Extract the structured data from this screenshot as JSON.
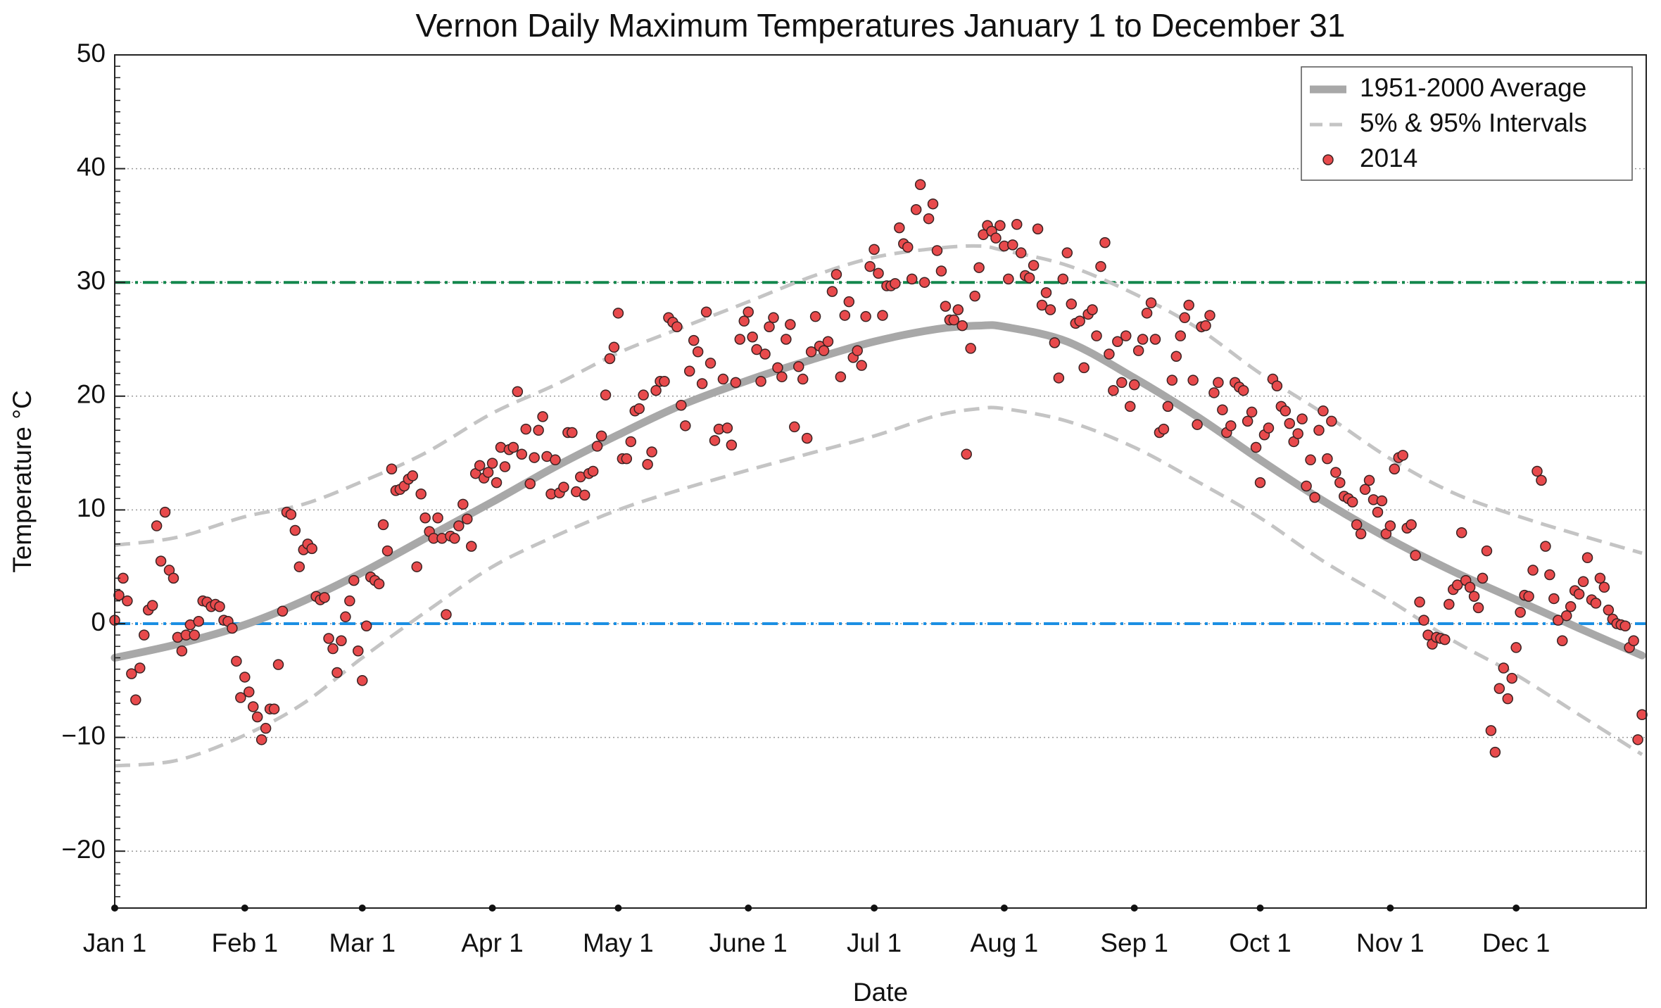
{
  "chart_data": {
    "type": "scatter",
    "title": "Vernon Daily Maximum Temperatures January 1 to December 31",
    "x_label": "Date",
    "y_label": "Temperature °C",
    "xlim": [
      0,
      365
    ],
    "ylim": [
      -25,
      50
    ],
    "xticks": [
      {
        "value": 0,
        "label": "Jan 1"
      },
      {
        "value": 31,
        "label": "Feb 1"
      },
      {
        "value": 59,
        "label": "Mar 1"
      },
      {
        "value": 90,
        "label": "Apr 1"
      },
      {
        "value": 120,
        "label": "May 1"
      },
      {
        "value": 151,
        "label": "June 1"
      },
      {
        "value": 181,
        "label": "Jul 1"
      },
      {
        "value": 212,
        "label": "Aug 1"
      },
      {
        "value": 243,
        "label": "Sep 1"
      },
      {
        "value": 273,
        "label": "Oct 1"
      },
      {
        "value": 304,
        "label": "Nov 1"
      },
      {
        "value": 334,
        "label": "Dec 1"
      }
    ],
    "yticks": [
      {
        "value": -20,
        "label": "−20"
      },
      {
        "value": -10,
        "label": "−10"
      },
      0,
      10,
      20,
      30,
      40,
      50
    ],
    "y_minor_step": 1,
    "grid": true,
    "legend": "upper right",
    "reference_lines": [
      {
        "value": 30,
        "color": "#13874d"
      },
      {
        "value": 0,
        "color": "#1b8fe3"
      }
    ],
    "series": [
      {
        "name": "1951-2000 Average",
        "color": "#a8a8a8",
        "kind": "line",
        "x": [
          0,
          15,
          31,
          45,
          59,
          74,
          90,
          105,
          120,
          135,
          151,
          166,
          181,
          196,
          206,
          212,
          227,
          243,
          258,
          273,
          288,
          304,
          319,
          334,
          349,
          364
        ],
        "values": [
          -3,
          -1.8,
          -0.1,
          2,
          4.5,
          7.5,
          10.7,
          13.8,
          16.6,
          19.2,
          21.4,
          23.2,
          24.8,
          25.9,
          26.2,
          26.1,
          24.8,
          21.6,
          18.2,
          14.4,
          10.8,
          7.4,
          4.6,
          2.1,
          -0.4,
          -2.8
        ]
      },
      {
        "name": "5% & 95% Intervals",
        "color": "#c4c4c4",
        "kind": "band",
        "x": [
          0,
          15,
          31,
          45,
          59,
          74,
          90,
          105,
          120,
          135,
          151,
          166,
          181,
          196,
          206,
          212,
          227,
          243,
          258,
          273,
          288,
          304,
          319,
          334,
          349,
          364
        ],
        "upper": [
          6.9,
          7.6,
          9.4,
          10.5,
          12.5,
          15,
          18.5,
          21,
          23.8,
          26,
          28.3,
          30.5,
          32.2,
          33,
          33.2,
          32.8,
          31.5,
          29,
          26,
          22,
          18.5,
          14.5,
          11.5,
          9.5,
          7.8,
          6.2
        ],
        "lower": [
          -12.5,
          -12,
          -9.8,
          -7,
          -3,
          1,
          5,
          7.7,
          10,
          11.8,
          13.5,
          15,
          16.5,
          18.3,
          18.9,
          18.9,
          17.8,
          15.5,
          12.5,
          9.3,
          5.5,
          2,
          -1.5,
          -4.5,
          -8,
          -11.5
        ]
      },
      {
        "name": "2014",
        "color": "#e84a4c",
        "kind": "points",
        "x": [
          0,
          1,
          2,
          3,
          4,
          5,
          6,
          7,
          8,
          9,
          10,
          11,
          12,
          13,
          14,
          15,
          16,
          17,
          18,
          19,
          20,
          21,
          22,
          23,
          24,
          25,
          26,
          27,
          28,
          29,
          30,
          31,
          32,
          33,
          34,
          35,
          36,
          37,
          38,
          39,
          40,
          41,
          42,
          43,
          44,
          45,
          46,
          47,
          48,
          49,
          50,
          51,
          52,
          53,
          54,
          55,
          56,
          57,
          58,
          59,
          60,
          61,
          62,
          63,
          64,
          65,
          66,
          67,
          68,
          69,
          70,
          71,
          72,
          73,
          74,
          75,
          76,
          77,
          78,
          79,
          80,
          81,
          82,
          83,
          84,
          85,
          86,
          87,
          88,
          89,
          90,
          91,
          92,
          93,
          94,
          95,
          96,
          97,
          98,
          99,
          100,
          101,
          102,
          103,
          104,
          105,
          106,
          107,
          108,
          109,
          110,
          111,
          112,
          113,
          114,
          115,
          116,
          117,
          118,
          119,
          120,
          121,
          122,
          123,
          124,
          125,
          126,
          127,
          128,
          129,
          130,
          131,
          132,
          133,
          134,
          135,
          136,
          137,
          138,
          139,
          140,
          141,
          142,
          143,
          144,
          145,
          146,
          147,
          148,
          149,
          150,
          151,
          152,
          153,
          154,
          155,
          156,
          157,
          158,
          159,
          160,
          161,
          162,
          163,
          164,
          165,
          166,
          167,
          168,
          169,
          170,
          171,
          172,
          173,
          174,
          175,
          176,
          177,
          178,
          179,
          180,
          181,
          182,
          183,
          184,
          185,
          186,
          187,
          188,
          189,
          190,
          191,
          192,
          193,
          194,
          195,
          196,
          197,
          198,
          199,
          200,
          201,
          202,
          203,
          204,
          205,
          206,
          207,
          208,
          209,
          210,
          211,
          212,
          213,
          214,
          215,
          216,
          217,
          218,
          219,
          220,
          221,
          222,
          223,
          224,
          225,
          226,
          227,
          228,
          229,
          230,
          231,
          232,
          233,
          234,
          235,
          236,
          237,
          238,
          239,
          240,
          241,
          242,
          243,
          244,
          245,
          246,
          247,
          248,
          249,
          250,
          251,
          252,
          253,
          254,
          255,
          256,
          257,
          258,
          259,
          260,
          261,
          262,
          263,
          264,
          265,
          266,
          267,
          268,
          269,
          270,
          271,
          272,
          273,
          274,
          275,
          276,
          277,
          278,
          279,
          280,
          281,
          282,
          283,
          284,
          285,
          286,
          287,
          288,
          289,
          290,
          291,
          292,
          293,
          294,
          295,
          296,
          297,
          298,
          299,
          300,
          301,
          302,
          303,
          304,
          305,
          306,
          307,
          308,
          309,
          310,
          311,
          312,
          313,
          314,
          315,
          316,
          317,
          318,
          319,
          320,
          321,
          322,
          323,
          324,
          325,
          326,
          327,
          328,
          329,
          330,
          331,
          332,
          333,
          334,
          335,
          336,
          337,
          338,
          339,
          340,
          341,
          342,
          343,
          344,
          345,
          346,
          347,
          348,
          349,
          350,
          351,
          352,
          353,
          354,
          355,
          356,
          357,
          358,
          359,
          360,
          361,
          362,
          363,
          364
        ],
        "values": [
          0.3,
          2.5,
          4,
          2,
          -4.4,
          -6.7,
          -3.9,
          -1,
          1.2,
          1.6,
          8.6,
          5.5,
          9.8,
          4.7,
          4,
          -1.2,
          -2.4,
          -1,
          -0.1,
          -1,
          0.2,
          2,
          1.9,
          1.5,
          1.7,
          1.5,
          0.3,
          0.2,
          -0.4,
          -3.3,
          -6.5,
          -4.7,
          -6,
          -7.3,
          -8.2,
          -10.2,
          -9.2,
          -7.5,
          -7.5,
          -3.6,
          1.1,
          9.8,
          9.6,
          8.2,
          5,
          6.5,
          7,
          6.6,
          2.4,
          2.1,
          2.3,
          -1.3,
          -2.2,
          -4.3,
          -1.5,
          0.6,
          2,
          3.8,
          -2.4,
          -5,
          -0.2,
          4.1,
          3.8,
          3.5,
          8.7,
          6.4,
          13.6,
          11.7,
          11.8,
          12.1,
          12.7,
          13,
          5,
          11.4,
          9.3,
          8.1,
          7.5,
          9.3,
          7.5,
          0.8,
          7.7,
          7.5,
          8.6,
          10.5,
          9.2,
          6.8,
          13.2,
          13.9,
          12.8,
          13.3,
          14.1,
          12.4,
          15.5,
          13.8,
          15.3,
          15.5,
          20.4,
          14.9,
          17.1,
          12.3,
          14.6,
          17,
          18.2,
          14.7,
          11.4,
          14.4,
          11.5,
          12,
          16.8,
          16.8,
          11.6,
          12.9,
          11.3,
          13.2,
          13.4,
          15.6,
          16.5,
          20.1,
          23.3,
          24.3,
          27.3,
          14.5,
          14.5,
          16,
          18.7,
          18.9,
          20.1,
          14,
          15.1,
          20.5,
          21.3,
          21.3,
          26.9,
          26.5,
          26.1,
          19.2,
          17.4,
          22.2,
          24.9,
          23.9,
          21.1,
          27.4,
          22.9,
          16.1,
          17.1,
          21.5,
          17.2,
          15.7,
          21.2,
          25,
          26.6,
          27.4,
          25.2,
          24.1,
          21.3,
          23.7,
          26.1,
          26.9,
          22.5,
          21.7,
          25,
          26.3,
          17.3,
          22.6,
          21.5,
          16.3,
          23.9,
          27,
          24.4,
          24,
          24.8,
          29.2,
          30.7,
          21.7,
          27.1,
          28.3,
          23.4,
          24,
          22.7,
          27,
          31.4,
          32.9,
          30.8,
          27.1,
          29.7,
          29.7,
          29.9,
          34.8,
          33.4,
          33.1,
          30.3,
          36.4,
          38.6,
          30,
          35.6,
          36.9,
          32.8,
          31,
          27.9,
          26.7,
          26.7,
          27.6,
          26.2,
          14.9,
          24.2,
          28.8,
          31.3,
          34.2,
          35,
          34.5,
          33.9,
          35,
          33.2,
          30.3,
          33.3,
          35.1,
          32.6,
          30.6,
          30.4,
          31.5,
          34.7,
          28,
          29.1,
          27.6,
          24.7,
          21.6,
          30.3,
          32.6,
          28.1,
          26.4,
          26.6,
          22.5,
          27.2,
          27.6,
          25.3,
          31.4,
          33.5,
          23.7,
          20.5,
          24.8,
          21.2,
          25.3,
          19.1,
          21,
          24,
          25,
          27.3,
          28.2,
          25,
          16.8,
          17.1,
          19.1,
          21.4,
          23.5,
          25.3,
          26.9,
          28,
          21.4,
          17.5,
          26.1,
          26.2,
          27.1,
          20.3,
          21.2,
          18.8,
          16.8,
          17.4,
          21.2,
          20.8,
          20.5,
          17.8,
          18.6,
          15.5,
          12.4,
          16.6,
          17.2,
          21.5,
          20.9,
          19.1,
          18.7,
          17.6,
          16,
          16.7,
          18,
          12.1,
          14.4,
          11.1,
          17,
          18.7,
          14.5,
          17.8,
          13.3,
          12.4,
          11.2,
          11,
          10.7,
          8.7,
          7.9,
          11.8,
          12.6,
          10.9,
          9.8,
          10.8,
          7.9,
          8.6,
          13.6,
          14.6,
          14.8,
          8.4,
          8.7,
          6,
          1.9,
          0.3,
          -1,
          -1.8,
          -1.2,
          -1.3,
          -1.4,
          1.7,
          3,
          3.4,
          8,
          3.8,
          3.2,
          2.4,
          1.4,
          4,
          6.4,
          -9.4,
          -11.3,
          -5.7,
          -3.9,
          -6.6,
          -4.8,
          -2.1,
          1,
          2.5,
          2.4,
          4.7,
          13.4,
          12.6,
          6.8,
          4.3,
          2.2,
          0.3,
          -1.5,
          0.7,
          1.5,
          2.9,
          2.6,
          3.7,
          5.8,
          2.1,
          1.8,
          4,
          3.2,
          1.2,
          0.4,
          0,
          -0.1,
          -0.2,
          -2.1,
          -1.5,
          -10.2,
          -8
        ]
      }
    ]
  }
}
